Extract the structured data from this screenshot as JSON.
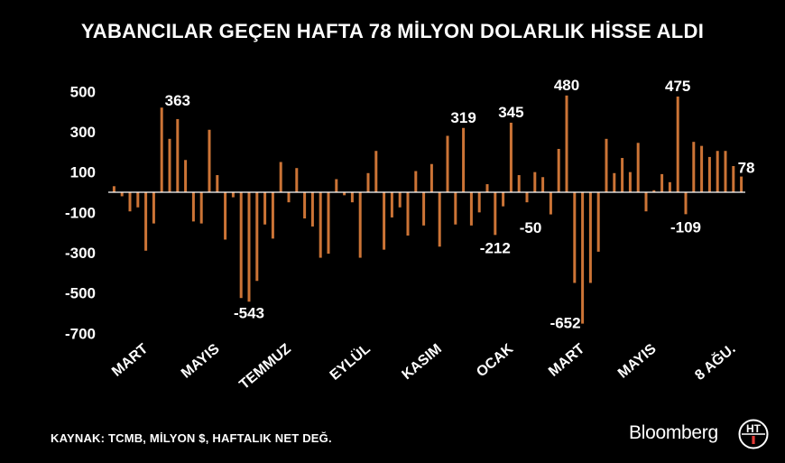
{
  "title": "YABANCILAR GEÇEN HAFTA 78 MİLYON DOLARLIK HİSSE ALDI",
  "source_note": "KAYNAK: TCMB, MİLYON $, HAFTALIK NET DEĞ.",
  "brand": "Bloomberg",
  "logo_text": "HT",
  "colors": {
    "bar": "#cc7436",
    "background": "#000000",
    "text": "#ffffff",
    "axis": "#ffffff"
  },
  "chart_data": {
    "type": "bar",
    "title": "YABANCILAR GEÇEN HAFTA 78 MİLYON DOLARLIK HİSSE ALDI",
    "xlabel": "",
    "ylabel": "",
    "ylim": [
      -700,
      560
    ],
    "y_ticks": [
      500,
      300,
      100,
      -100,
      -300,
      -500,
      -700
    ],
    "grid": false,
    "legend": "none",
    "x_tick_labels": [
      {
        "label": "MART",
        "index": 3
      },
      {
        "label": "MAYIS",
        "index": 12
      },
      {
        "label": "TEMMUZ",
        "index": 21
      },
      {
        "label": "EYLÜL",
        "index": 31
      },
      {
        "label": "KASIM",
        "index": 40
      },
      {
        "label": "OCAK",
        "index": 49
      },
      {
        "label": "MART",
        "index": 58
      },
      {
        "label": "MAYIS",
        "index": 67
      },
      {
        "label": "8 AĞU.",
        "index": 77
      }
    ],
    "values": [
      30,
      -20,
      -95,
      -75,
      -290,
      -155,
      420,
      265,
      363,
      160,
      -145,
      -155,
      310,
      85,
      -235,
      -25,
      -525,
      -543,
      -440,
      -160,
      -230,
      150,
      -50,
      120,
      -130,
      -170,
      -325,
      -305,
      65,
      -15,
      -50,
      -325,
      95,
      205,
      -285,
      -125,
      -75,
      -215,
      105,
      -165,
      140,
      -270,
      280,
      -160,
      319,
      -165,
      -100,
      40,
      -212,
      -70,
      345,
      85,
      -50,
      100,
      75,
      -110,
      215,
      480,
      -450,
      -652,
      -450,
      -295,
      265,
      95,
      170,
      100,
      245,
      -95,
      10,
      90,
      50,
      475,
      -109,
      250,
      230,
      175,
      205,
      205,
      130,
      78
    ],
    "data_labels": [
      {
        "index": 8,
        "text": "363"
      },
      {
        "index": 17,
        "text": "-543"
      },
      {
        "index": 44,
        "text": "319"
      },
      {
        "index": 48,
        "text": "-212"
      },
      {
        "index": 50,
        "text": "345"
      },
      {
        "index": 52,
        "text": "-50"
      },
      {
        "index": 57,
        "text": "480"
      },
      {
        "index": 59,
        "text": "-652"
      },
      {
        "index": 71,
        "text": "475"
      },
      {
        "index": 72,
        "text": "-109"
      },
      {
        "index": 79,
        "text": "78"
      }
    ]
  }
}
